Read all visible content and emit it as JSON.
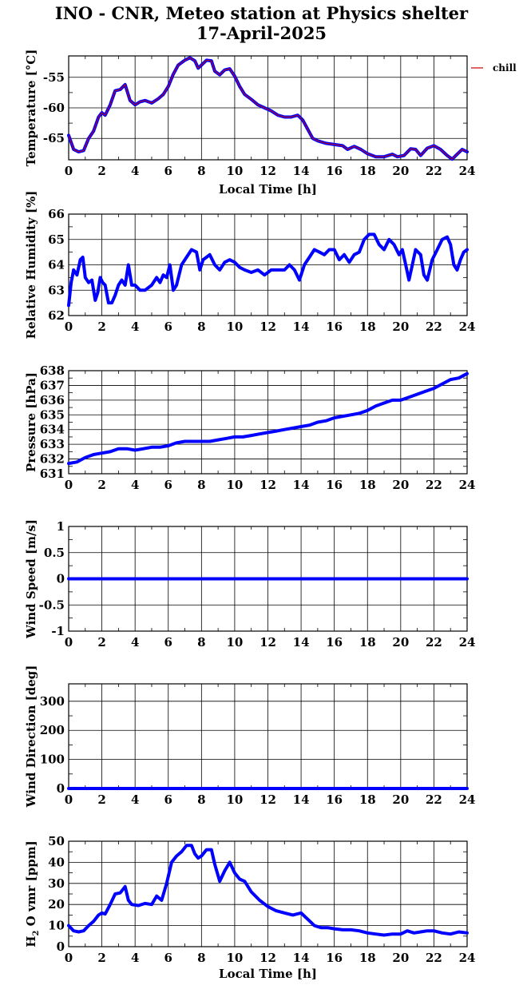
{
  "title": {
    "line1": "INO - CNR, Meteo station at Physics shelter",
    "line2": "17-April-2025"
  },
  "colors": {
    "series_blue": "#0000ff",
    "series_red": "#cc0000",
    "grid": "#000000"
  },
  "chart_data": [
    {
      "id": "temperature",
      "type": "line",
      "ylabel": "Temperature [°C]",
      "xlabel": "Local Time [h]",
      "xlim": [
        0,
        24
      ],
      "ylim": [
        -68.5,
        -51.5
      ],
      "xticks": [
        "0",
        "2",
        "4",
        "6",
        "8",
        "10",
        "12",
        "14",
        "16",
        "18",
        "20",
        "22",
        "24"
      ],
      "yticks": [
        -65,
        -60,
        -55
      ],
      "ytick_labels": [
        "-65",
        "-60",
        "-55"
      ],
      "legend": [
        "chill"
      ],
      "series": [
        {
          "name": "chill",
          "color": "#cc0000",
          "x": [
            0,
            0.3,
            0.6,
            0.9,
            1.2,
            1.5,
            1.8,
            2.0,
            2.2,
            2.5,
            2.8,
            3.1,
            3.4,
            3.7,
            4.0,
            4.3,
            4.6,
            5.0,
            5.4,
            5.7,
            6.0,
            6.3,
            6.6,
            7.0,
            7.3,
            7.6,
            7.8,
            8.0,
            8.3,
            8.6,
            8.8,
            9.1,
            9.4,
            9.7,
            10.0,
            10.3,
            10.6,
            11.0,
            11.4,
            11.8,
            12.2,
            12.6,
            13.0,
            13.4,
            13.8,
            14.1,
            14.4,
            14.7,
            15.0,
            15.5,
            16.0,
            16.5,
            16.8,
            17.2,
            17.6,
            18.0,
            18.5,
            19.0,
            19.5,
            19.8,
            20.2,
            20.6,
            20.9,
            21.2,
            21.6,
            22.0,
            22.4,
            22.8,
            23.1,
            23.4,
            23.7,
            24.0
          ],
          "y": [
            -64.5,
            -66.8,
            -67.2,
            -67.0,
            -65.0,
            -63.8,
            -61.5,
            -60.8,
            -61.2,
            -59.5,
            -57.2,
            -57.0,
            -56.2,
            -58.8,
            -59.5,
            -59.0,
            -58.8,
            -59.2,
            -58.5,
            -57.8,
            -56.5,
            -54.5,
            -53.0,
            -52.2,
            -51.8,
            -52.3,
            -53.5,
            -53.0,
            -52.2,
            -52.3,
            -54.0,
            -54.6,
            -53.8,
            -53.6,
            -54.8,
            -56.5,
            -57.8,
            -58.6,
            -59.5,
            -60.0,
            -60.5,
            -61.2,
            -61.5,
            -61.5,
            -61.2,
            -62.0,
            -63.5,
            -65.0,
            -65.4,
            -65.8,
            -66.0,
            -66.2,
            -66.8,
            -66.3,
            -66.8,
            -67.5,
            -68.0,
            -68.0,
            -67.6,
            -68.0,
            -67.8,
            -66.7,
            -66.8,
            -67.8,
            -66.6,
            -66.2,
            -66.8,
            -67.8,
            -68.4,
            -67.6,
            -66.8,
            -67.2
          ]
        }
      ]
    },
    {
      "id": "humidity",
      "type": "line",
      "ylabel": "Relative Humidity [%]",
      "xlabel": "",
      "xlim": [
        0,
        24
      ],
      "ylim": [
        62,
        66
      ],
      "xticks": [
        "0",
        "2",
        "4",
        "6",
        "8",
        "10",
        "12",
        "14",
        "16",
        "18",
        "20",
        "22",
        "24"
      ],
      "yticks": [
        62,
        63,
        64,
        65,
        66
      ],
      "ytick_labels": [
        "62",
        "63",
        "64",
        "65",
        "66"
      ],
      "series": [
        {
          "name": "",
          "color": "#0000ff",
          "x": [
            0,
            0.15,
            0.3,
            0.5,
            0.7,
            0.85,
            1.0,
            1.2,
            1.4,
            1.6,
            1.75,
            1.9,
            2.05,
            2.2,
            2.4,
            2.6,
            2.8,
            3.0,
            3.2,
            3.4,
            3.6,
            3.8,
            4.0,
            4.3,
            4.6,
            5.0,
            5.3,
            5.5,
            5.7,
            5.9,
            6.1,
            6.3,
            6.5,
            6.8,
            7.1,
            7.4,
            7.7,
            7.9,
            8.1,
            8.3,
            8.5,
            8.8,
            9.1,
            9.4,
            9.7,
            10.0,
            10.3,
            10.6,
            11.0,
            11.4,
            11.8,
            12.2,
            12.6,
            13.0,
            13.3,
            13.6,
            13.9,
            14.2,
            14.5,
            14.8,
            15.1,
            15.4,
            15.7,
            16.0,
            16.3,
            16.6,
            16.9,
            17.2,
            17.5,
            17.8,
            18.1,
            18.4,
            18.7,
            19.0,
            19.3,
            19.6,
            19.9,
            20.1,
            20.3,
            20.5,
            20.7,
            20.9,
            21.2,
            21.4,
            21.6,
            21.9,
            22.2,
            22.5,
            22.8,
            23.0,
            23.2,
            23.4,
            23.6,
            23.8,
            24.0
          ],
          "y": [
            62.4,
            63.3,
            63.8,
            63.6,
            64.2,
            64.3,
            63.5,
            63.3,
            63.4,
            62.6,
            62.9,
            63.5,
            63.3,
            63.2,
            62.5,
            62.5,
            62.8,
            63.2,
            63.4,
            63.2,
            64.0,
            63.2,
            63.2,
            63.0,
            63.0,
            63.2,
            63.5,
            63.3,
            63.6,
            63.5,
            64.0,
            63.0,
            63.2,
            64.0,
            64.3,
            64.6,
            64.5,
            63.8,
            64.2,
            64.3,
            64.4,
            64.0,
            63.8,
            64.1,
            64.2,
            64.1,
            63.9,
            63.8,
            63.7,
            63.8,
            63.6,
            63.8,
            63.8,
            63.8,
            64.0,
            63.8,
            63.4,
            64.0,
            64.3,
            64.6,
            64.5,
            64.4,
            64.6,
            64.6,
            64.2,
            64.4,
            64.1,
            64.4,
            64.5,
            65.0,
            65.2,
            65.2,
            64.8,
            64.6,
            65.0,
            64.8,
            64.4,
            64.6,
            64.0,
            63.4,
            64.0,
            64.6,
            64.4,
            63.6,
            63.4,
            64.2,
            64.6,
            65.0,
            65.1,
            64.8,
            64.0,
            63.8,
            64.2,
            64.5,
            64.6
          ]
        }
      ]
    },
    {
      "id": "pressure",
      "type": "line",
      "ylabel": "Pressure [hPa]",
      "xlabel": "",
      "xlim": [
        0,
        24
      ],
      "ylim": [
        631,
        638
      ],
      "xticks": [
        "0",
        "2",
        "4",
        "6",
        "8",
        "10",
        "12",
        "14",
        "16",
        "18",
        "20",
        "22",
        "24"
      ],
      "yticks": [
        631,
        632,
        633,
        634,
        635,
        636,
        637,
        638
      ],
      "ytick_labels": [
        "631",
        "632",
        "633",
        "634",
        "635",
        "636",
        "637",
        "638"
      ],
      "series": [
        {
          "name": "",
          "color": "#0000ff",
          "x": [
            0,
            0.5,
            1.0,
            1.5,
            2.0,
            2.5,
            3.0,
            3.5,
            4.0,
            4.5,
            5.0,
            5.5,
            6.0,
            6.5,
            7.0,
            7.5,
            8.0,
            8.5,
            9.0,
            9.5,
            10.0,
            10.5,
            11.0,
            11.5,
            12.0,
            12.5,
            13.0,
            13.5,
            14.0,
            14.5,
            15.0,
            15.5,
            16.0,
            16.5,
            17.0,
            17.5,
            18.0,
            18.5,
            19.0,
            19.5,
            20.0,
            20.5,
            21.0,
            21.5,
            22.0,
            22.5,
            23.0,
            23.5,
            24.0
          ],
          "y": [
            631.7,
            631.8,
            632.1,
            632.3,
            632.4,
            632.5,
            632.7,
            632.7,
            632.6,
            632.7,
            632.8,
            632.8,
            632.9,
            633.1,
            633.2,
            633.2,
            633.2,
            633.2,
            633.3,
            633.4,
            633.5,
            633.5,
            633.6,
            633.7,
            633.8,
            633.9,
            634.0,
            634.1,
            634.2,
            634.3,
            634.5,
            634.6,
            634.8,
            634.9,
            635.0,
            635.1,
            635.3,
            635.6,
            635.8,
            636.0,
            636.0,
            636.2,
            636.4,
            636.6,
            636.8,
            637.1,
            637.4,
            637.5,
            637.8
          ]
        }
      ]
    },
    {
      "id": "wind_speed",
      "type": "line",
      "ylabel": "Wind Speed [m/s]",
      "xlabel": "",
      "xlim": [
        0,
        24
      ],
      "ylim": [
        -1,
        1
      ],
      "xticks": [
        "0",
        "2",
        "4",
        "6",
        "8",
        "10",
        "12",
        "14",
        "16",
        "18",
        "20",
        "22",
        "24"
      ],
      "yticks": [
        -1,
        -0.5,
        0,
        0.5,
        1
      ],
      "ytick_labels": [
        "-1",
        "-0.5",
        "0",
        "0.5",
        "1"
      ],
      "series": [
        {
          "name": "",
          "color": "#0000ff",
          "x": [
            0,
            24
          ],
          "y": [
            0,
            0
          ]
        }
      ]
    },
    {
      "id": "wind_direction",
      "type": "line",
      "ylabel": "Wind Direction [deg]",
      "xlabel": "",
      "xlim": [
        0,
        24
      ],
      "ylim": [
        0,
        360
      ],
      "xticks": [
        "0",
        "2",
        "4",
        "6",
        "8",
        "10",
        "12",
        "14",
        "16",
        "18",
        "20",
        "22",
        "24"
      ],
      "yticks": [
        0,
        100,
        200,
        300
      ],
      "ytick_labels": [
        "0",
        "100",
        "200",
        "300"
      ],
      "series": [
        {
          "name": "",
          "color": "#0000ff",
          "x": [
            0,
            24
          ],
          "y": [
            0,
            0
          ]
        }
      ]
    },
    {
      "id": "h2o_vmr",
      "type": "line",
      "ylabel": "H2O vmr [ppm]",
      "xlabel": "Local Time [h]",
      "xlim": [
        0,
        24
      ],
      "ylim": [
        0,
        50
      ],
      "xticks": [
        "0",
        "2",
        "4",
        "6",
        "8",
        "10",
        "12",
        "14",
        "16",
        "18",
        "20",
        "22",
        "24"
      ],
      "yticks": [
        0,
        10,
        20,
        30,
        40,
        50
      ],
      "ytick_labels": [
        "0",
        "10",
        "20",
        "30",
        "40",
        "50"
      ],
      "series": [
        {
          "name": "",
          "color": "#0000ff",
          "x": [
            0,
            0.3,
            0.6,
            0.9,
            1.2,
            1.5,
            1.8,
            2.0,
            2.2,
            2.5,
            2.8,
            3.1,
            3.4,
            3.6,
            3.8,
            4.2,
            4.6,
            5.0,
            5.3,
            5.6,
            5.9,
            6.2,
            6.5,
            6.8,
            7.1,
            7.4,
            7.6,
            7.8,
            8.0,
            8.3,
            8.6,
            8.8,
            9.1,
            9.4,
            9.7,
            10.0,
            10.3,
            10.6,
            11.0,
            11.5,
            12.0,
            12.5,
            13.0,
            13.5,
            14.0,
            14.4,
            14.8,
            15.2,
            15.6,
            16.0,
            16.5,
            17.0,
            17.5,
            18.0,
            18.5,
            19.0,
            19.5,
            20.0,
            20.4,
            20.8,
            21.2,
            21.6,
            22.0,
            22.5,
            23.0,
            23.5,
            24.0
          ],
          "y": [
            10,
            7.5,
            7,
            7.5,
            10,
            12,
            15,
            16,
            15.5,
            20,
            25,
            25.5,
            28.5,
            22,
            20,
            19.5,
            20.5,
            20,
            24,
            22,
            30,
            40,
            43,
            45,
            48,
            48,
            44,
            42,
            43,
            46,
            46,
            39,
            31,
            36,
            40,
            35,
            32,
            31,
            26,
            22,
            19,
            17,
            16,
            15,
            16,
            13,
            10,
            9,
            9,
            8.5,
            8,
            8,
            7.5,
            6.5,
            6,
            5.5,
            6,
            6,
            7.5,
            6.5,
            7,
            7.5,
            7.5,
            6.5,
            6,
            7,
            6.5
          ]
        }
      ]
    }
  ]
}
